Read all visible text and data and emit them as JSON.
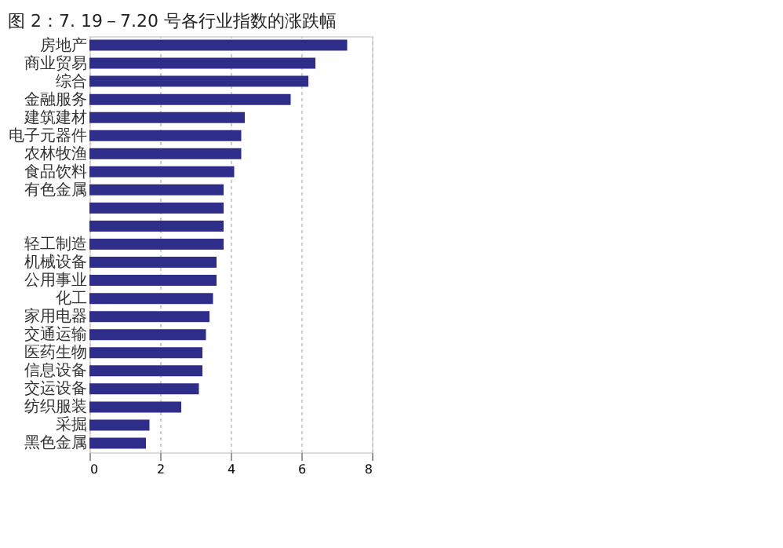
{
  "chart_data": {
    "type": "bar",
    "orientation": "horizontal",
    "title": "图 2：7. 19－7.20 号各行业指数的涨跌幅",
    "categories": [
      "房地产",
      "商业贸易",
      "综合",
      "金融服务",
      "建筑建材",
      "电子元器件",
      "农林牧渔",
      "食品饮料",
      "有色金属",
      null,
      null,
      "轻工制造",
      "机械设备",
      "公用事业",
      "化工",
      "家用电器",
      "交通运输",
      "医药生物",
      "信息设备",
      "交运设备",
      "纺织服装",
      "采掘",
      "黑色金属"
    ],
    "values": [
      7.3,
      6.4,
      6.2,
      5.7,
      4.4,
      4.3,
      4.3,
      4.1,
      3.8,
      3.8,
      3.8,
      3.8,
      3.6,
      3.6,
      3.5,
      3.4,
      3.3,
      3.2,
      3.2,
      3.1,
      2.6,
      1.7,
      1.6
    ],
    "color": "#2e2e8a",
    "xlim": [
      0,
      8
    ],
    "xticks": [
      0,
      2,
      4,
      6,
      8
    ],
    "grid": "x"
  }
}
